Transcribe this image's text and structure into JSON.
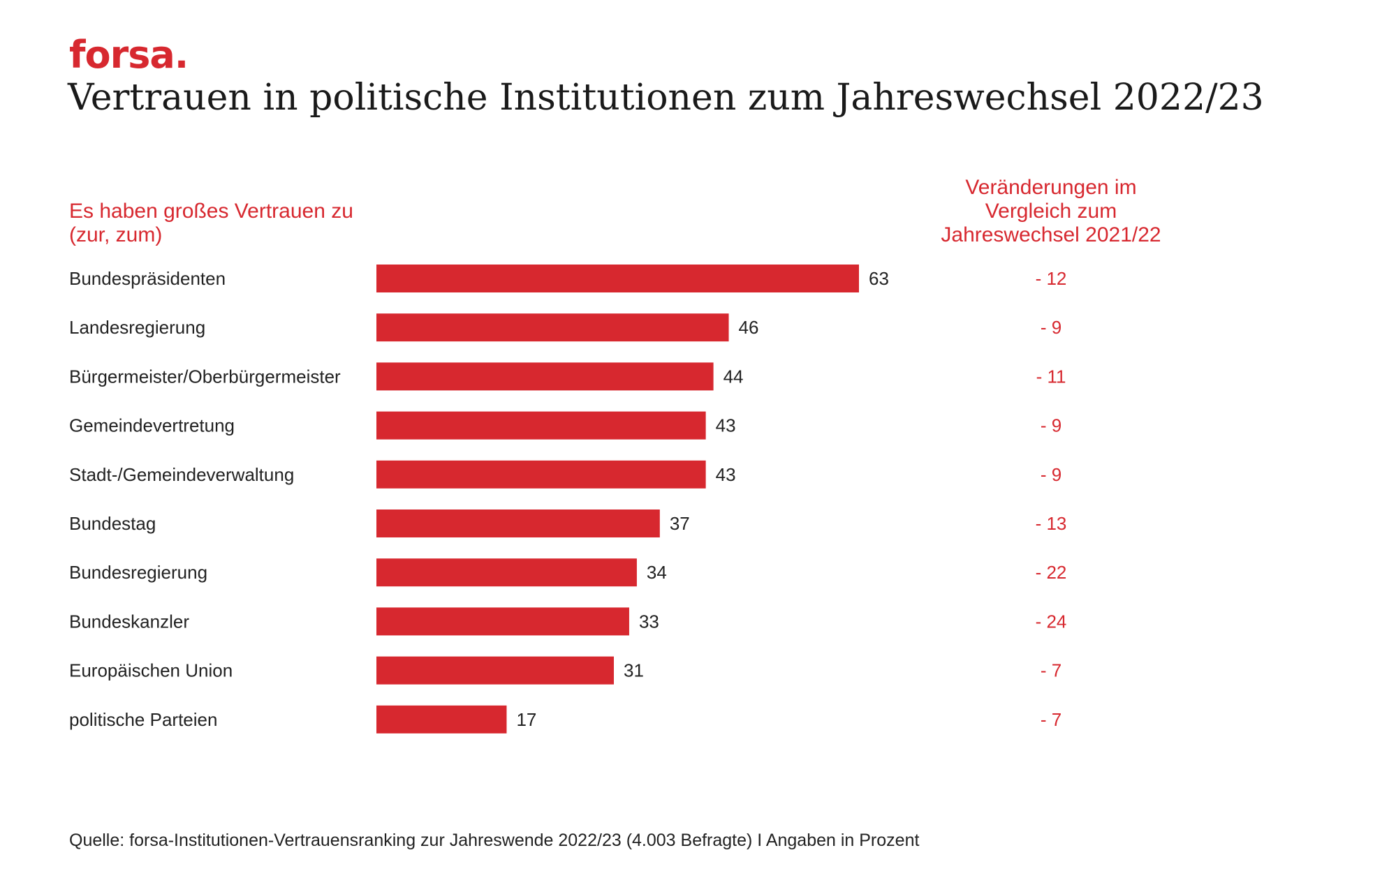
{
  "brand": {
    "logo": "forsa.",
    "color": "#d7282f"
  },
  "chart_data": {
    "type": "bar",
    "orientation": "horizontal",
    "title": "Vertrauen in politische Institutionen zum Jahreswechsel 2022/23",
    "category_header": "Es haben großes Vertrauen zu (zur, zum)",
    "change_header": "Veränderungen im Vergleich zum Jahreswechsel 2021/22",
    "categories": [
      "Bundespräsidenten",
      "Landesregierung",
      "Bürgermeister/Oberbürgermeister",
      "Gemeindevertretung",
      "Stadt-/Gemeindeverwaltung",
      "Bundestag",
      "Bundesregierung",
      "Bundeskanzler",
      "Europäischen Union",
      "politische Parteien"
    ],
    "values": [
      63,
      46,
      44,
      43,
      43,
      37,
      34,
      33,
      31,
      17
    ],
    "changes": [
      "- 12",
      "- 9",
      "- 11",
      "- 9",
      "- 9",
      "- 13",
      "- 22",
      "- 24",
      "- 7",
      "- 7"
    ],
    "xlim": [
      0,
      100
    ],
    "unit": "Prozent",
    "bar_color": "#d7282f",
    "grid": false
  },
  "source": "Quelle: forsa-Institutionen-Vertrauensranking zur Jahreswende 2022/23 (4.003 Befragte) I Angaben in Prozent"
}
